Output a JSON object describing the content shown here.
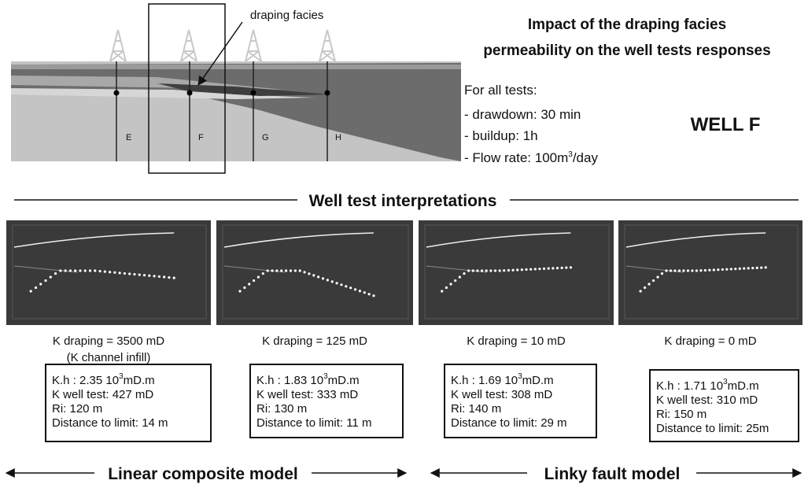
{
  "cross_section": {
    "annotation": "draping facies",
    "wells": [
      "E",
      "F",
      "G",
      "H"
    ]
  },
  "title": [
    "Impact of the draping facies",
    "permeability on the well tests responses"
  ],
  "conditions": {
    "heading": "For all tests:",
    "items": [
      "- drawdown: 30 min",
      "- buildup: 1h"
    ],
    "flow_rate": {
      "text": "- Flow rate: 100m",
      "sup": "3",
      "tail": "/day"
    }
  },
  "well_label": "WELL F",
  "section_title": "Well test interpretations",
  "panels": [
    {
      "caption": [
        "K draping = 3500 mD",
        "(K channel infill)"
      ],
      "kh": {
        "text": "K.h : 2.35 10",
        "sup": "3",
        "tail": "mD.m"
      },
      "lines": [
        "K well test: 427 mD",
        "Ri: 120 m",
        "Distance to limit: 14 m"
      ]
    },
    {
      "caption": [
        "K draping = 125 mD"
      ],
      "kh": {
        "text": "K.h : 1.83 10",
        "sup": "3",
        "tail": "mD.m"
      },
      "lines": [
        "K well test: 333 mD",
        "Ri: 130 m",
        "Distance to limit: 11 m"
      ]
    },
    {
      "caption": [
        "K draping = 10 mD"
      ],
      "kh": {
        "text": "K.h : 1.69 10",
        "sup": "3",
        "tail": "mD.m"
      },
      "lines": [
        "K well test: 308 mD",
        "Ri: 140 m",
        "Distance to limit: 29 m"
      ]
    },
    {
      "caption": [
        "K draping = 0 mD"
      ],
      "kh": {
        "text": "K.h : 1.71 10",
        "sup": "3",
        "tail": "mD.m"
      },
      "lines": [
        "K well test: 310 mD",
        "Ri: 150 m",
        "Distance to limit: 25m"
      ]
    }
  ],
  "models": [
    "Linear composite model",
    "Linky fault model"
  ]
}
